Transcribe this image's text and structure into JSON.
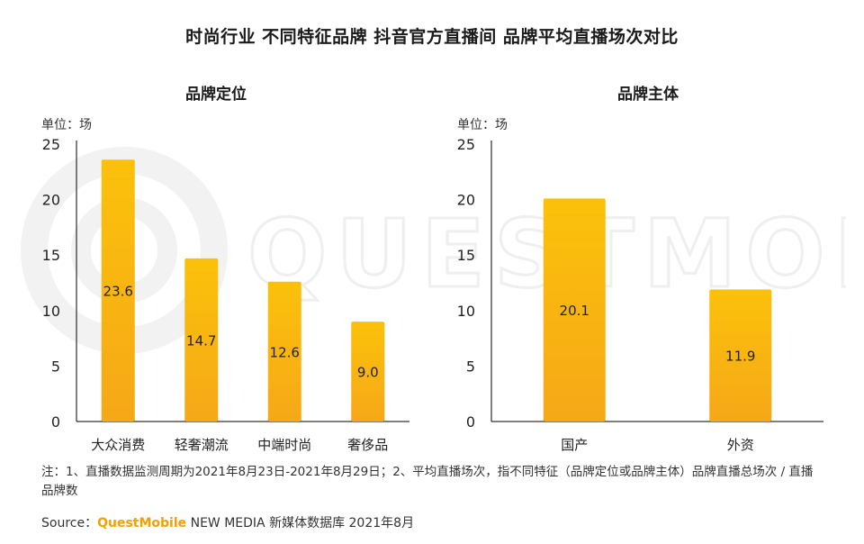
{
  "title": "时尚行业 不同特征品牌 抖音官方直播间 品牌平均直播场次对比",
  "watermark": "QUESTMOBILE",
  "colors": {
    "bar_top": "#fbc10a",
    "bar_bottom": "#f6a818",
    "axis": "#000000",
    "label": "#222222"
  },
  "chart_data": [
    {
      "type": "bar",
      "title": "品牌定位",
      "unit": "单位：场",
      "categories": [
        "大众消费",
        "轻奢潮流",
        "中端时尚",
        "奢侈品"
      ],
      "values": [
        23.6,
        14.7,
        12.6,
        9.0
      ],
      "value_labels": [
        "23.6",
        "14.7",
        "12.6",
        "9.0"
      ],
      "ylim": [
        0,
        25
      ],
      "yticks": [
        "0",
        "5",
        "10",
        "15",
        "20",
        "25"
      ],
      "grid": false
    },
    {
      "type": "bar",
      "title": "品牌主体",
      "unit": "单位：场",
      "categories": [
        "国产",
        "外资"
      ],
      "values": [
        20.1,
        11.9
      ],
      "value_labels": [
        "20.1",
        "11.9"
      ],
      "ylim": [
        0,
        25
      ],
      "yticks": [
        "0",
        "5",
        "10",
        "15",
        "20",
        "25"
      ],
      "grid": false
    }
  ],
  "note": "注：1、直播数据监测周期为2021年8月23日-2021年8月29日；2、平均直播场次，指不同特征（品牌定位或品牌主体）品牌直播总场次 / 直播品牌数",
  "source": {
    "label": "Source：",
    "brand": "QuestMobile",
    "rest": " NEW MEDIA 新媒体数据库 2021年8月"
  }
}
